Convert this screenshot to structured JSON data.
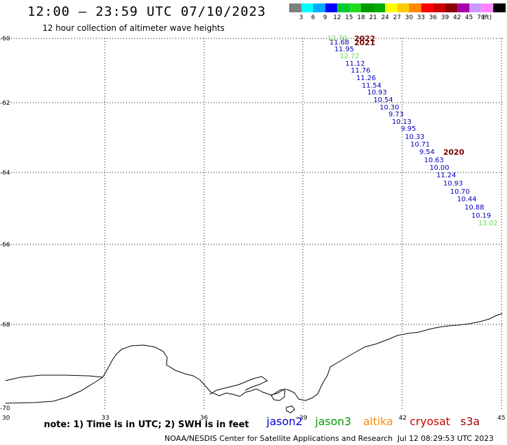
{
  "title": "12:00 – 23:59 UTC 07/10/2023",
  "subtitle": "12 hour collection of altimeter wave heights",
  "scale": {
    "unit": "(ft)",
    "bins": [
      {
        "label": "",
        "color": "#808080"
      },
      {
        "label": "3",
        "color": "#00ffff"
      },
      {
        "label": "6",
        "color": "#00aaff"
      },
      {
        "label": "9",
        "color": "#0000ff"
      },
      {
        "label": "12",
        "color": "#00cc33"
      },
      {
        "label": "15",
        "color": "#22dd22"
      },
      {
        "label": "18",
        "color": "#009900"
      },
      {
        "label": "21",
        "color": "#00aa00"
      },
      {
        "label": "24",
        "color": "#ffff00"
      },
      {
        "label": "27",
        "color": "#ffcc00"
      },
      {
        "label": "30",
        "color": "#ff8800"
      },
      {
        "label": "33",
        "color": "#ff0000"
      },
      {
        "label": "36",
        "color": "#cc0000"
      },
      {
        "label": "39",
        "color": "#880000"
      },
      {
        "label": "42",
        "color": "#aa00aa"
      },
      {
        "label": "45",
        "color": "#cc99ff"
      },
      {
        "label": "70",
        "color": "#ff88ff"
      },
      {
        "label": "",
        "color": "#000000"
      }
    ]
  },
  "axes": {
    "y_labels": [
      "-60",
      "-62",
      "-64",
      "-66",
      "-68",
      "-70"
    ],
    "x_labels": [
      "30",
      "33",
      "36",
      "39",
      "42",
      "45"
    ]
  },
  "wave_heights": [
    {
      "value": "12.70",
      "color": "#66dd55"
    },
    {
      "value": "11.68",
      "color": "#0000bb"
    },
    {
      "value": "11.95",
      "color": "#0000bb"
    },
    {
      "value": "12.72",
      "color": "#66dd55"
    },
    {
      "value": "11.12",
      "color": "#0000bb"
    },
    {
      "value": "11.76",
      "color": "#0000bb"
    },
    {
      "value": "11.26",
      "color": "#0000bb"
    },
    {
      "value": "11.54",
      "color": "#0000bb"
    },
    {
      "value": "10.93",
      "color": "#0000bb"
    },
    {
      "value": "10.54",
      "color": "#0000bb"
    },
    {
      "value": "10.30",
      "color": "#0000bb"
    },
    {
      "value": "9.73",
      "color": "#0000bb"
    },
    {
      "value": "10.13",
      "color": "#0000bb"
    },
    {
      "value": "9.95",
      "color": "#0000bb"
    },
    {
      "value": "10.33",
      "color": "#0000bb"
    },
    {
      "value": "10.71",
      "color": "#0000bb"
    },
    {
      "value": "9.54",
      "color": "#0000bb"
    },
    {
      "value": "10.63",
      "color": "#0000bb"
    },
    {
      "value": "10.00",
      "color": "#0000bb"
    },
    {
      "value": "11.24",
      "color": "#0000bb"
    },
    {
      "value": "10.93",
      "color": "#0000bb"
    },
    {
      "value": "10.70",
      "color": "#0000bb"
    },
    {
      "value": "10.44",
      "color": "#0000bb"
    },
    {
      "value": "10.88",
      "color": "#0000bb"
    },
    {
      "value": "10.19",
      "color": "#0000bb"
    },
    {
      "value": "13.02",
      "color": "#66dd55"
    }
  ],
  "year_labels": [
    "2022",
    "2021",
    "2020"
  ],
  "note": "note: 1) Time is in UTC; 2) SWH is in feet",
  "satellites": [
    {
      "name": "jason2",
      "color": "#0000cc"
    },
    {
      "name": "jason3",
      "color": "#009900"
    },
    {
      "name": "altika",
      "color": "#ff8800"
    },
    {
      "name": "cryosat",
      "color": "#cc0000"
    },
    {
      "name": "s3a",
      "color": "#990000"
    }
  ],
  "footer": {
    "org": "NOAA/NESDIS Center for Satellite Applications and Research",
    "timestamp": "Jul 12 08:29:53 UTC 2023"
  }
}
